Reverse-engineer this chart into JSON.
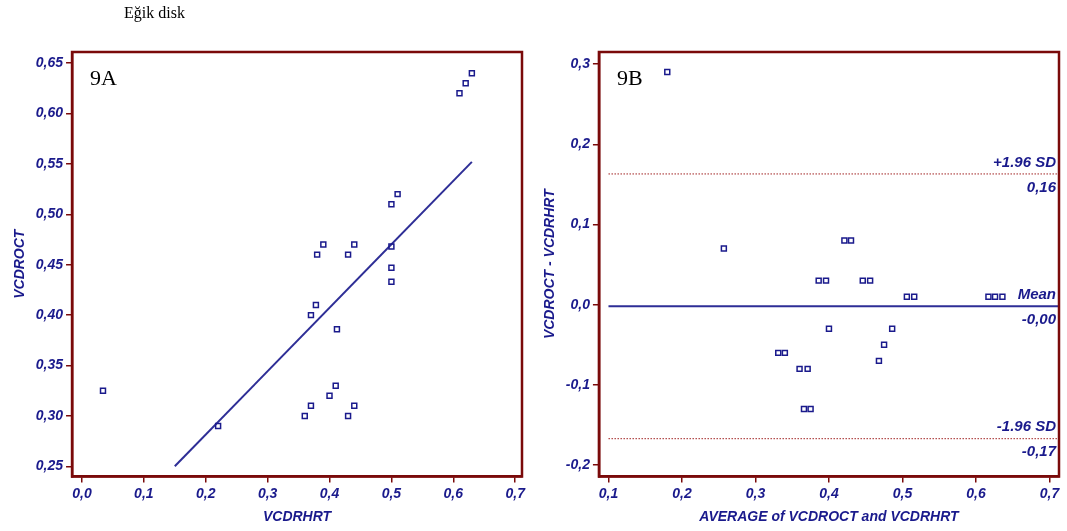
{
  "chart_data": [
    {
      "type": "scatter",
      "title": "Eğik disk",
      "xlabel": "VCDRHRT",
      "ylabel": "VCDROCT",
      "annotations": [
        "9A"
      ],
      "legend": false,
      "xlim": [
        -0.016,
        0.711
      ],
      "ylim": [
        0.24,
        0.661
      ],
      "xticks": [
        {
          "value": 0,
          "label": "0,0"
        },
        {
          "value": 0.1,
          "label": "0,1"
        },
        {
          "value": 0.2,
          "label": "0,2"
        },
        {
          "value": 0.3,
          "label": "0,3"
        },
        {
          "value": 0.4,
          "label": "0,4"
        },
        {
          "value": 0.5,
          "label": "0,5"
        },
        {
          "value": 0.6,
          "label": "0,6"
        },
        {
          "value": 0.7,
          "label": "0,7"
        }
      ],
      "yticks": [
        {
          "value": 0.25,
          "label": "0,25"
        },
        {
          "value": 0.3,
          "label": "0,30"
        },
        {
          "value": 0.35,
          "label": "0,35"
        },
        {
          "value": 0.4,
          "label": "0,40"
        },
        {
          "value": 0.45,
          "label": "0,45"
        },
        {
          "value": 0.5,
          "label": "0,50"
        },
        {
          "value": 0.55,
          "label": "0,55"
        },
        {
          "value": 0.6,
          "label": "0,60"
        },
        {
          "value": 0.65,
          "label": "0,65"
        }
      ],
      "series": [
        {
          "type": "scatter",
          "color": "#1a1a8c",
          "marker": "square",
          "x": [
            0.034,
            0.22,
            0.36,
            0.37,
            0.378,
            0.37,
            0.38,
            0.39,
            0.4,
            0.41,
            0.412,
            0.43,
            0.44,
            0.43,
            0.44,
            0.5,
            0.51,
            0.5,
            0.5,
            0.5,
            0.61,
            0.62,
            0.63
          ],
          "values": [
            0.325,
            0.29,
            0.3,
            0.31,
            0.41,
            0.4,
            0.46,
            0.47,
            0.32,
            0.33,
            0.386,
            0.46,
            0.47,
            0.3,
            0.31,
            0.51,
            0.52,
            0.468,
            0.447,
            0.433,
            0.62,
            0.63,
            0.64
          ]
        },
        {
          "type": "line",
          "color": "#2e2e96",
          "marker": "none",
          "line_style": "solid",
          "x": [
            0.15,
            0.63
          ],
          "values": [
            0.25,
            0.552
          ]
        }
      ]
    },
    {
      "type": "scatter",
      "xlabel": "AVERAGE of VCDROCT and VCDRHRT",
      "ylabel": "VCDROCT - VCDRHRT",
      "legend": false,
      "annotations": [
        "9B",
        {
          "text": "0,16",
          "y": 0.163
        },
        {
          "text": "-0,00",
          "y": -0.002
        },
        {
          "text": "-0,17",
          "y": -0.167
        }
      ],
      "xlim": [
        0.087,
        0.713
      ],
      "ylim": [
        -0.214,
        0.315
      ],
      "xticks": [
        {
          "value": 0.1,
          "label": "0,1"
        },
        {
          "value": 0.2,
          "label": "0,2"
        },
        {
          "value": 0.3,
          "label": "0,3"
        },
        {
          "value": 0.4,
          "label": "0,4"
        },
        {
          "value": 0.5,
          "label": "0,5"
        },
        {
          "value": 0.6,
          "label": "0,6"
        },
        {
          "value": 0.7,
          "label": "0,7"
        }
      ],
      "yticks": [
        {
          "value": -0.2,
          "label": "-0,2"
        },
        {
          "value": -0.1,
          "label": "-0,1"
        },
        {
          "value": 0,
          "label": "0,0"
        },
        {
          "value": 0.1,
          "label": "0,1"
        },
        {
          "value": 0.2,
          "label": "0,2"
        },
        {
          "value": 0.3,
          "label": "0,3"
        }
      ],
      "ref_lines": [
        {
          "axis": "y",
          "value": 0.163,
          "label": "+1.96 SD",
          "color": "#a02020",
          "line_style": "dotted"
        },
        {
          "axis": "y",
          "value": -0.002,
          "label": "Mean",
          "color": "#2e2e96",
          "line_style": "solid"
        },
        {
          "axis": "y",
          "value": -0.167,
          "label": "-1.96 SD",
          "color": "#a02020",
          "line_style": "dotted"
        }
      ],
      "series": [
        {
          "type": "scatter",
          "color": "#1a1a8c",
          "marker": "square",
          "x": [
            0.18,
            0.257,
            0.331,
            0.34,
            0.36,
            0.371,
            0.366,
            0.375,
            0.386,
            0.396,
            0.4,
            0.421,
            0.43,
            0.446,
            0.456,
            0.468,
            0.475,
            0.486,
            0.506,
            0.516,
            0.617,
            0.626,
            0.636
          ],
          "values": [
            0.29,
            0.07,
            -0.06,
            -0.06,
            -0.08,
            -0.08,
            -0.13,
            -0.13,
            0.03,
            0.03,
            -0.03,
            0.08,
            0.08,
            0.03,
            0.03,
            -0.07,
            -0.05,
            -0.03,
            0.01,
            0.01,
            0.01,
            0.01,
            0.01
          ]
        }
      ]
    }
  ]
}
